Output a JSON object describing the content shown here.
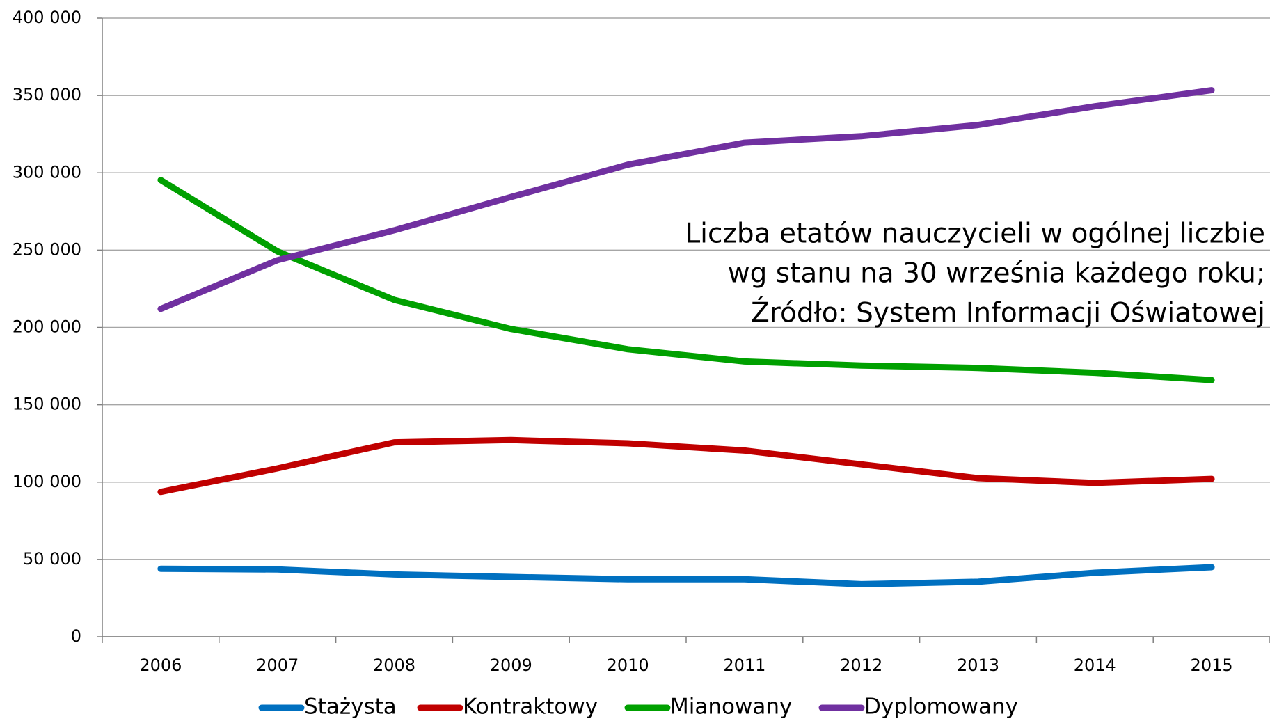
{
  "chart_data": {
    "type": "line",
    "annotation": [
      "Liczba etatów nauczycieli w ogólnej liczbie",
      "wg stanu na 30 września każdego roku;",
      "Źródło: System Informacji Oświatowej"
    ],
    "categories": [
      "2006",
      "2007",
      "2008",
      "2009",
      "2010",
      "2011",
      "2012",
      "2013",
      "2014",
      "2015"
    ],
    "series": [
      {
        "name": "Stażysta",
        "color": "#0070c0",
        "values": [
          44000,
          43500,
          40300,
          38700,
          37200,
          37200,
          34000,
          35600,
          41400,
          45000
        ]
      },
      {
        "name": "Kontraktowy",
        "color": "#c00000",
        "values": [
          93700,
          108900,
          125700,
          127200,
          125100,
          120400,
          111500,
          102600,
          99500,
          102100
        ]
      },
      {
        "name": "Mianowany",
        "color": "#00a000",
        "values": [
          295300,
          249200,
          217800,
          199000,
          185900,
          178000,
          175400,
          173800,
          170700,
          166000
        ]
      },
      {
        "name": "Dyplomowany",
        "color": "#7030a0",
        "values": [
          212000,
          243500,
          262800,
          284300,
          305200,
          319400,
          323600,
          330900,
          343000,
          353400
        ]
      }
    ],
    "ylim": [
      0,
      400000
    ],
    "yticks": [
      0,
      {
        "value": 50000,
        "label": "50 000"
      },
      {
        "value": 100000,
        "label": "100 000"
      },
      {
        "value": 150000,
        "label": "150 000"
      },
      {
        "value": 200000,
        "label": "200 000"
      },
      {
        "value": 250000,
        "label": "250 000"
      },
      {
        "value": 300000,
        "label": "300 000"
      },
      {
        "value": 350000,
        "label": "350 000"
      },
      {
        "value": 400000,
        "label": "400 000"
      }
    ],
    "grid": true,
    "legend": "bottom"
  }
}
